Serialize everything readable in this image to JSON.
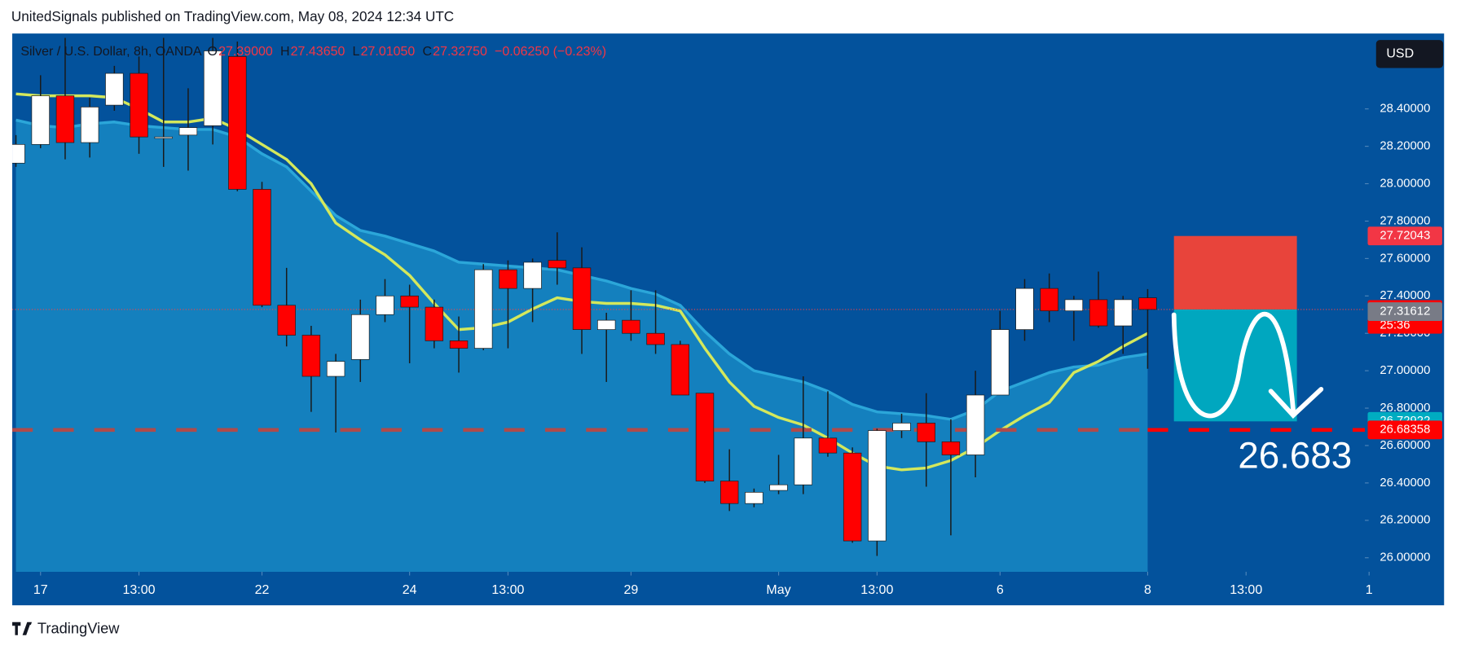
{
  "header": "UnitedSignals published on TradingView.com, May 08, 2024 12:34 UTC",
  "footer": "TradingView",
  "currency_button": "USD",
  "chart_data": {
    "type": "candlestick",
    "symbol": "Silver / U.S. Dollar, 8h, OANDA",
    "ohlc_legend": [
      {
        "key": "O",
        "text": "27.39000"
      },
      {
        "key": "H",
        "text": "27.43650"
      },
      {
        "key": "L",
        "text": "27.01050"
      },
      {
        "key": "C",
        "text": "27.32750"
      }
    ],
    "change": "−0.06250 (−0.23%)",
    "open": [
      28.11,
      28.21,
      28.47,
      28.22,
      28.42,
      28.59,
      28.25,
      28.26,
      28.31,
      28.68,
      27.97,
      27.35,
      27.19,
      26.97,
      27.06,
      27.3,
      27.4,
      27.34,
      27.16,
      27.12,
      27.54,
      27.44,
      27.59,
      27.55,
      27.22,
      27.27,
      27.2,
      27.14,
      26.88,
      26.41,
      26.29,
      26.36,
      26.39,
      26.64,
      26.56,
      26.09,
      26.68,
      26.72,
      26.62,
      26.55,
      26.87,
      27.22,
      27.44,
      27.32,
      27.38,
      27.24,
      27.39
    ],
    "high": [
      28.26,
      28.58,
      28.78,
      28.46,
      28.63,
      28.68,
      28.78,
      28.51,
      28.78,
      28.76,
      28.01,
      27.55,
      27.24,
      27.09,
      27.38,
      27.49,
      27.46,
      27.38,
      27.29,
      27.57,
      27.59,
      27.6,
      27.74,
      27.66,
      27.31,
      27.43,
      27.43,
      27.16,
      26.88,
      26.58,
      26.37,
      26.55,
      26.97,
      26.89,
      26.59,
      26.69,
      26.77,
      26.88,
      26.74,
      27.0,
      27.32,
      27.49,
      27.52,
      27.4,
      27.53,
      27.4,
      27.4365
    ],
    "low": [
      28.09,
      28.19,
      28.13,
      28.14,
      28.39,
      28.16,
      28.09,
      28.07,
      28.21,
      27.96,
      27.34,
      27.13,
      26.78,
      26.67,
      26.94,
      27.26,
      27.04,
      27.12,
      26.99,
      27.11,
      27.12,
      27.26,
      27.46,
      27.09,
      26.94,
      27.16,
      27.09,
      26.87,
      26.4,
      26.25,
      26.27,
      26.34,
      26.34,
      26.54,
      26.08,
      26.01,
      26.64,
      26.38,
      26.12,
      26.43,
      26.87,
      27.16,
      27.26,
      27.16,
      27.23,
      27.09,
      27.0105
    ],
    "close": [
      28.21,
      28.47,
      28.22,
      28.41,
      28.59,
      28.25,
      28.25,
      28.3,
      28.71,
      27.97,
      27.35,
      27.19,
      26.97,
      27.05,
      27.3,
      27.4,
      27.34,
      27.16,
      27.12,
      27.54,
      27.44,
      27.58,
      27.55,
      27.22,
      27.27,
      27.2,
      27.14,
      26.87,
      26.41,
      26.29,
      26.35,
      26.39,
      26.64,
      26.56,
      26.09,
      26.68,
      26.72,
      26.62,
      26.55,
      26.87,
      27.22,
      27.44,
      27.32,
      27.38,
      27.24,
      27.38,
      27.3275
    ],
    "up_color": "#ffffff",
    "down_color": "#ff0000",
    "wick_color": "#1a1a1a",
    "lines": [
      {
        "color": "#2ba6d9",
        "fill": "#1583c0",
        "values": [
          28.34,
          28.31,
          28.3,
          28.32,
          28.33,
          28.31,
          28.3,
          28.29,
          28.29,
          28.25,
          28.16,
          28.09,
          27.96,
          27.83,
          27.75,
          27.72,
          27.68,
          27.64,
          27.58,
          27.57,
          27.56,
          27.55,
          27.54,
          27.51,
          27.48,
          27.44,
          27.41,
          27.35,
          27.21,
          27.09,
          27.0,
          26.97,
          26.94,
          26.89,
          26.82,
          26.78,
          26.77,
          26.76,
          26.74,
          26.79,
          26.89,
          26.94,
          26.99,
          27.02,
          27.03,
          27.07,
          27.09
        ]
      },
      {
        "color": "#d4e85c",
        "values": [
          28.48,
          28.47,
          28.47,
          28.47,
          28.46,
          28.4,
          28.33,
          28.33,
          28.35,
          28.29,
          28.21,
          28.13,
          28.0,
          27.79,
          27.7,
          27.62,
          27.51,
          27.36,
          27.22,
          27.23,
          27.26,
          27.33,
          27.39,
          27.37,
          27.36,
          27.36,
          27.35,
          27.32,
          27.12,
          26.94,
          26.81,
          26.75,
          26.71,
          26.64,
          26.56,
          26.49,
          26.47,
          26.48,
          26.52,
          26.59,
          26.68,
          26.76,
          26.83,
          26.99,
          27.05,
          27.13,
          27.2
        ]
      }
    ],
    "xlim": [
      -0.15,
      54.83
    ],
    "xticks": [
      {
        "value": 1,
        "label": "17"
      },
      {
        "value": 5,
        "label": "13:00"
      },
      {
        "value": 10,
        "label": "22"
      },
      {
        "value": 16,
        "label": "24"
      },
      {
        "value": 20,
        "label": "13:00"
      },
      {
        "value": 25,
        "label": "29"
      },
      {
        "value": 31,
        "label": "May"
      },
      {
        "value": 35,
        "label": "13:00"
      },
      {
        "value": 40,
        "label": "6"
      },
      {
        "value": 46,
        "label": "8"
      },
      {
        "value": 50,
        "label": "13:00"
      },
      {
        "value": 55,
        "label": "1"
      }
    ],
    "ylim": [
      25.925,
      28.803
    ],
    "yticks": [
      {
        "value": 26.0,
        "label": "26.00000"
      },
      {
        "value": 26.2,
        "label": "26.20000"
      },
      {
        "value": 26.4,
        "label": "26.40000"
      },
      {
        "value": 26.6,
        "label": "26.60000"
      },
      {
        "value": 26.8,
        "label": "26.80000"
      },
      {
        "value": 27.0,
        "label": "27.00000"
      },
      {
        "value": 27.2,
        "label": "27.20000"
      },
      {
        "value": 27.4,
        "label": "27.40000"
      },
      {
        "value": 27.6,
        "label": "27.60000"
      },
      {
        "value": 27.8,
        "label": "27.80000"
      },
      {
        "value": 28.0,
        "label": "28.00000"
      },
      {
        "value": 28.2,
        "label": "28.20000"
      },
      {
        "value": 28.4,
        "label": "28.40000"
      }
    ],
    "price_labels": [
      {
        "value": 27.72043,
        "label": "27.72043",
        "color": "#f23645"
      },
      {
        "value": 27.3275,
        "label": "27.32750",
        "color": "#ff0000",
        "countdown": "25:36"
      },
      {
        "value": 27.31612,
        "label": "27.31612",
        "color": "#787b86"
      },
      {
        "value": 26.72922,
        "label": "26.72922",
        "color": "#00acc1"
      },
      {
        "value": 26.68358,
        "label": "26.68358",
        "color": "#ff0000"
      }
    ],
    "position": {
      "stop": 27.72043,
      "entry": 27.3275,
      "target": 26.72922,
      "stop_color": "#f44336",
      "target_color": "#00acc1"
    },
    "target_line": {
      "value": 26.68358,
      "color": "#b04a4a",
      "projection_color": "#ff0000"
    },
    "annotation": "26.683"
  }
}
